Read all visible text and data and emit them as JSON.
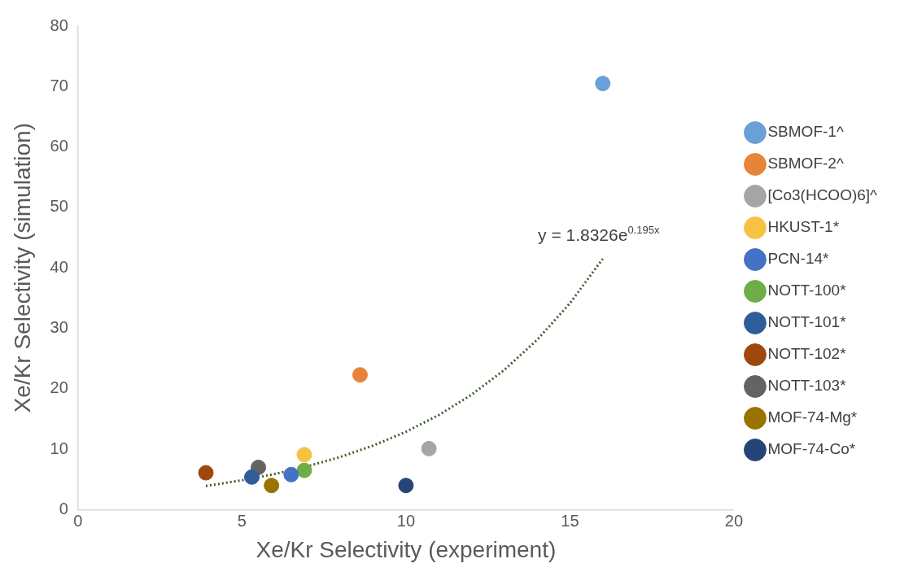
{
  "chart_data": {
    "type": "scatter",
    "xlabel": "Xe/Kr Selectivity (experiment)",
    "ylabel": "Xe/Kr Selectivity (simulation)",
    "xlim": [
      0,
      20
    ],
    "xticks": [
      0,
      5,
      10,
      15,
      20
    ],
    "ylim": [
      0,
      80
    ],
    "yticks": [
      0,
      10,
      20,
      30,
      40,
      50,
      60,
      70,
      80
    ],
    "grid": false,
    "legend": "right",
    "marker": "circle",
    "annotations": [
      "y = 1.8326e$^{0.195x}$"
    ],
    "series": [
      {
        "name": "SBMOF-1^",
        "color": "#6a9fd8",
        "x": [
          16.0
        ],
        "values": [
          70.5
        ]
      },
      {
        "name": "SBMOF-2^",
        "color": "#e8833a",
        "x": [
          8.6
        ],
        "values": [
          22.3
        ]
      },
      {
        "name": "[Co3(HCOO)6]^",
        "color": "#a5a5a5",
        "x": [
          10.7
        ],
        "values": [
          10.1
        ]
      },
      {
        "name": "HKUST-1*",
        "color": "#f5c242",
        "x": [
          6.9
        ],
        "values": [
          9.1
        ]
      },
      {
        "name": "PCN-14*",
        "color": "#4472c4",
        "x": [
          6.5
        ],
        "values": [
          5.8
        ]
      },
      {
        "name": "NOTT-100*",
        "color": "#70ad47",
        "x": [
          6.9
        ],
        "values": [
          6.5
        ]
      },
      {
        "name": "NOTT-101*",
        "color": "#2f5d9a",
        "x": [
          5.3
        ],
        "values": [
          5.4
        ]
      },
      {
        "name": "NOTT-102*",
        "color": "#9e480e",
        "x": [
          3.9
        ],
        "values": [
          6.1
        ]
      },
      {
        "name": "NOTT-103*",
        "color": "#636363",
        "x": [
          5.5
        ],
        "values": [
          7.0
        ]
      },
      {
        "name": "MOF-74-Mg*",
        "color": "#997300",
        "x": [
          5.9
        ],
        "values": [
          4.0
        ]
      },
      {
        "name": "MOF-74-Co*",
        "color": "#264478",
        "x": [
          10.0
        ],
        "values": [
          4.0
        ]
      },
      {
        "type": "line",
        "color": "#3b5e2b",
        "line_style": "dotted",
        "marker": "none",
        "x": [
          3.9,
          5,
          6,
          7,
          8,
          9,
          10,
          11,
          12,
          13,
          14,
          15,
          16
        ],
        "values": [
          3.92,
          4.86,
          5.9,
          7.18,
          8.72,
          10.6,
          12.88,
          15.65,
          19.02,
          23.12,
          28.1,
          34.15,
          41.5
        ]
      }
    ]
  }
}
